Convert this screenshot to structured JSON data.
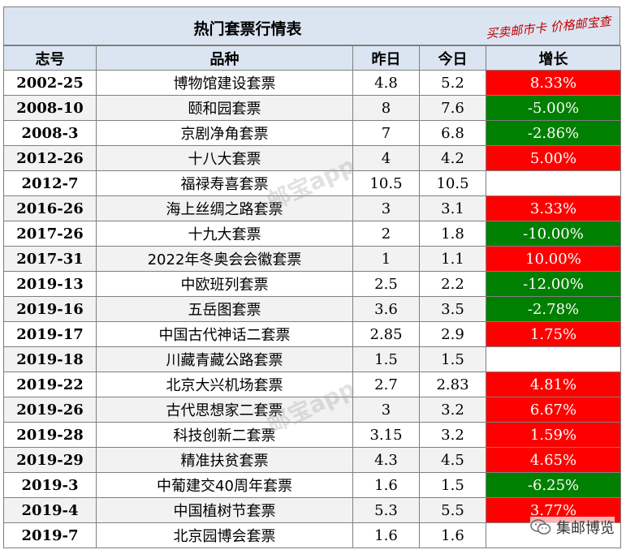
{
  "title": "热门套票行情表",
  "tagline": "买卖邮市卡 价格邮宝查",
  "columns": [
    "志号",
    "品种",
    "昨日",
    "今日",
    "增长"
  ],
  "rows": [
    {
      "code": "2002-25",
      "name": "博物馆建设套票",
      "yesterday": "4.8",
      "today": "5.2",
      "growth": "8.33%",
      "trend": "up"
    },
    {
      "code": "2008-10",
      "name": "颐和园套票",
      "yesterday": "8",
      "today": "7.6",
      "growth": "-5.00%",
      "trend": "down"
    },
    {
      "code": "2008-3",
      "name": "京剧净角套票",
      "yesterday": "7",
      "today": "6.8",
      "growth": "-2.86%",
      "trend": "down"
    },
    {
      "code": "2012-26",
      "name": "十八大套票",
      "yesterday": "4",
      "today": "4.2",
      "growth": "5.00%",
      "trend": "up"
    },
    {
      "code": "2012-7",
      "name": "福禄寿喜套票",
      "yesterday": "10.5",
      "today": "10.5",
      "growth": "",
      "trend": "none"
    },
    {
      "code": "2016-26",
      "name": "海上丝绸之路套票",
      "yesterday": "3",
      "today": "3.1",
      "growth": "3.33%",
      "trend": "up"
    },
    {
      "code": "2017-26",
      "name": "十九大套票",
      "yesterday": "2",
      "today": "1.8",
      "growth": "-10.00%",
      "trend": "down"
    },
    {
      "code": "2017-31",
      "name": "2022年冬奥会会徽套票",
      "yesterday": "1",
      "today": "1.1",
      "growth": "10.00%",
      "trend": "up"
    },
    {
      "code": "2019-13",
      "name": "中欧班列套票",
      "yesterday": "2.5",
      "today": "2.2",
      "growth": "-12.00%",
      "trend": "down"
    },
    {
      "code": "2019-16",
      "name": "五岳图套票",
      "yesterday": "3.6",
      "today": "3.5",
      "growth": "-2.78%",
      "trend": "down"
    },
    {
      "code": "2019-17",
      "name": "中国古代神话二套票",
      "yesterday": "2.85",
      "today": "2.9",
      "growth": "1.75%",
      "trend": "up"
    },
    {
      "code": "2019-18",
      "name": "川藏青藏公路套票",
      "yesterday": "1.5",
      "today": "1.5",
      "growth": "",
      "trend": "none"
    },
    {
      "code": "2019-22",
      "name": "北京大兴机场套票",
      "yesterday": "2.7",
      "today": "2.83",
      "growth": "4.81%",
      "trend": "up"
    },
    {
      "code": "2019-26",
      "name": "古代思想家二套票",
      "yesterday": "3",
      "today": "3.2",
      "growth": "6.67%",
      "trend": "up"
    },
    {
      "code": "2019-28",
      "name": "科技创新二套票",
      "yesterday": "3.15",
      "today": "3.2",
      "growth": "1.59%",
      "trend": "up"
    },
    {
      "code": "2019-29",
      "name": "精准扶贫套票",
      "yesterday": "4.3",
      "today": "4.5",
      "growth": "4.65%",
      "trend": "up"
    },
    {
      "code": "2019-3",
      "name": "中葡建交40周年套票",
      "yesterday": "1.6",
      "today": "1.5",
      "growth": "-6.25%",
      "trend": "down"
    },
    {
      "code": "2019-4",
      "name": "中国植树节套票",
      "yesterday": "5.3",
      "today": "5.5",
      "growth": "3.77%",
      "trend": "up"
    },
    {
      "code": "2019-7",
      "name": "北京园博会套票",
      "yesterday": "1.6",
      "today": "1.6",
      "growth": "",
      "trend": "none"
    }
  ],
  "watermark": "邮宝app",
  "brand": "集邮博览",
  "icons": {
    "brand": "wechat-icon"
  },
  "colors": {
    "up": "#ff0000",
    "down": "#008000",
    "header": "#dbe5f1"
  }
}
